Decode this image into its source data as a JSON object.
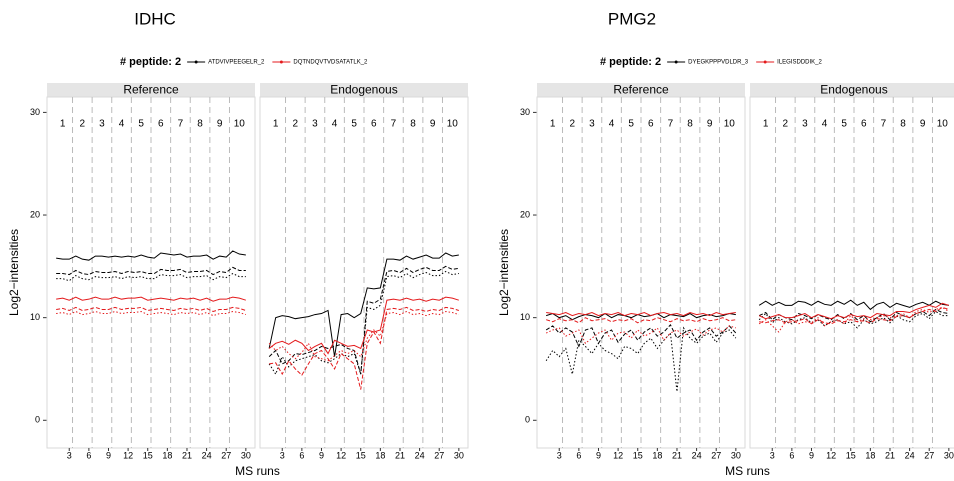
{
  "chart_data": [
    {
      "type": "line",
      "title": "IDHC",
      "legend_title": "# peptide: 2",
      "xlabel": "MS runs",
      "ylabel": "Log2−intensities",
      "panel_titles": [
        "Reference",
        "Endogenous"
      ],
      "groups": [
        1,
        2,
        3,
        4,
        5,
        6,
        7,
        8,
        9,
        10
      ],
      "x": [
        1,
        2,
        3,
        4,
        5,
        6,
        7,
        8,
        9,
        10,
        11,
        12,
        13,
        14,
        15,
        16,
        17,
        18,
        19,
        20,
        21,
        22,
        23,
        24,
        25,
        26,
        27,
        28,
        29,
        30
      ],
      "xlim": [
        -0.4,
        31.4
      ],
      "xticks": [
        3,
        6,
        9,
        12,
        15,
        18,
        21,
        24,
        27,
        30
      ],
      "ylim": [
        -2.7,
        31.5
      ],
      "yticks": [
        0,
        10,
        20,
        30
      ],
      "series": [
        {
          "name": "ATDVIVPEEGELR_2",
          "color": "#000000",
          "values": [
            [
              [
                15.8,
                15.7,
                15.7,
                16.0,
                15.7,
                15.6,
                16.0,
                16.0,
                15.9,
                16.0,
                15.9,
                16.0,
                15.9,
                16.1,
                15.9,
                15.8,
                16.3,
                16.2,
                16.1,
                16.2,
                15.9,
                16.0,
                16.0,
                16.1,
                15.7,
                16.0,
                15.9,
                16.5,
                16.2,
                16.1
              ],
              [
                14.3,
                14.3,
                14.2,
                14.6,
                14.3,
                14.2,
                14.5,
                14.4,
                14.4,
                14.5,
                14.3,
                14.5,
                14.4,
                14.5,
                14.3,
                14.3,
                14.7,
                14.6,
                14.6,
                14.7,
                14.4,
                14.5,
                14.5,
                14.6,
                14.2,
                14.5,
                14.4,
                14.9,
                14.6,
                14.6
              ],
              [
                13.8,
                13.8,
                13.6,
                14.1,
                13.8,
                13.7,
                14.0,
                13.9,
                13.9,
                14.0,
                13.8,
                14.0,
                13.9,
                14.0,
                13.8,
                13.8,
                14.2,
                14.1,
                14.1,
                14.2,
                13.9,
                14.0,
                14.0,
                14.1,
                13.7,
                14.0,
                13.9,
                14.3,
                14.0,
                14.0
              ]
            ],
            [
              [
                7.0,
                10.0,
                10.2,
                10.1,
                9.9,
                10.0,
                10.1,
                10.3,
                10.4,
                10.7,
                6.2,
                10.3,
                10.4,
                10.0,
                10.4,
                12.9,
                12.8,
                12.9,
                15.7,
                15.7,
                15.6,
                16.0,
                15.7,
                15.9,
                16.1,
                15.8,
                15.8,
                16.3,
                16.0,
                16.1
              ],
              [
                6.2,
                6.8,
                5.5,
                5.8,
                6.5,
                6.4,
                6.6,
                6.8,
                7.2,
                7.0,
                7.2,
                7.4,
                7.0,
                6.8,
                4.5,
                11.6,
                11.4,
                11.8,
                14.5,
                14.6,
                14.4,
                14.8,
                14.4,
                14.7,
                14.9,
                14.6,
                14.6,
                15.0,
                14.7,
                14.8
              ],
              [
                5.5,
                4.5,
                6.2,
                5.2,
                5.8,
                6.0,
                6.2,
                6.4,
                5.8,
                5.6,
                6.0,
                6.5,
                6.2,
                6.5,
                4.5,
                11.0,
                10.8,
                11.2,
                14.0,
                14.1,
                13.9,
                14.3,
                13.9,
                14.2,
                14.4,
                14.1,
                14.1,
                14.5,
                14.2,
                14.3
              ]
            ]
          ]
        },
        {
          "name": "DQTNDQVTVDSATATLK_2",
          "color": "#e41a1c",
          "values": [
            [
              [
                11.8,
                11.9,
                11.7,
                12.0,
                11.7,
                11.8,
                12.0,
                11.8,
                11.8,
                12.0,
                11.8,
                11.9,
                11.9,
                12.0,
                11.7,
                11.8,
                11.9,
                11.8,
                11.7,
                11.9,
                11.8,
                11.9,
                11.7,
                11.9,
                11.6,
                11.8,
                11.8,
                12.0,
                11.9,
                11.7
              ],
              [
                10.8,
                10.9,
                10.7,
                11.0,
                10.7,
                10.8,
                11.0,
                10.8,
                10.8,
                11.0,
                10.8,
                10.9,
                10.9,
                11.0,
                10.7,
                10.8,
                10.9,
                10.8,
                10.7,
                10.9,
                10.8,
                10.9,
                10.7,
                10.9,
                10.6,
                10.8,
                10.8,
                11.0,
                10.9,
                10.7
              ],
              [
                10.4,
                10.5,
                10.3,
                10.6,
                10.3,
                10.4,
                10.6,
                10.4,
                10.4,
                10.6,
                10.4,
                10.5,
                10.5,
                10.6,
                10.3,
                10.4,
                10.5,
                10.4,
                10.3,
                10.5,
                10.4,
                10.5,
                10.3,
                10.5,
                10.2,
                10.4,
                10.4,
                10.6,
                10.5,
                10.3
              ]
            ],
            [
              [
                7.0,
                7.5,
                7.7,
                7.4,
                7.8,
                7.5,
                6.8,
                7.2,
                7.5,
                6.5,
                7.8,
                7.5,
                7.2,
                7.3,
                7.0,
                8.8,
                8.6,
                8.8,
                11.7,
                11.8,
                11.7,
                11.9,
                11.7,
                11.8,
                11.6,
                11.8,
                11.7,
                12.0,
                11.9,
                11.7
              ],
              [
                5.5,
                5.6,
                4.5,
                5.8,
                5.0,
                4.4,
                5.5,
                6.5,
                6.8,
                6.0,
                5.0,
                6.5,
                6.0,
                5.5,
                3.0,
                7.5,
                8.6,
                7.5,
                10.8,
                10.9,
                10.8,
                11.0,
                10.7,
                10.8,
                10.6,
                10.8,
                10.7,
                11.0,
                10.9,
                10.7
              ],
              [
                7.5,
                6.8,
                7.2,
                6.5,
                6.0,
                6.6,
                7.5,
                6.2,
                6.0,
                5.8,
                6.3,
                6.8,
                6.5,
                6.8,
                6.2,
                8.0,
                8.8,
                8.2,
                10.4,
                10.5,
                10.3,
                10.6,
                10.3,
                10.4,
                10.2,
                10.4,
                10.3,
                10.6,
                10.5,
                10.3
              ]
            ]
          ]
        }
      ]
    },
    {
      "type": "line",
      "title": "PMG2",
      "legend_title": "# peptide: 2",
      "xlabel": "MS runs",
      "ylabel": "Log2−intensities",
      "panel_titles": [
        "Reference",
        "Endogenous"
      ],
      "groups": [
        1,
        2,
        3,
        4,
        5,
        6,
        7,
        8,
        9,
        10
      ],
      "x": [
        1,
        2,
        3,
        4,
        5,
        6,
        7,
        8,
        9,
        10,
        11,
        12,
        13,
        14,
        15,
        16,
        17,
        18,
        19,
        20,
        21,
        22,
        23,
        24,
        25,
        26,
        27,
        28,
        29,
        30
      ],
      "xlim": [
        -0.4,
        31.4
      ],
      "xticks": [
        3,
        6,
        9,
        12,
        15,
        18,
        21,
        24,
        27,
        30
      ],
      "ylim": [
        -2.7,
        31.5
      ],
      "yticks": [
        0,
        10,
        20,
        30
      ],
      "series": [
        {
          "name": "DYEGKPPPVDLDR_3",
          "color": "#000000",
          "values": [
            [
              [
                10.2,
                10.4,
                10.0,
                10.2,
                9.8,
                10.1,
                10.3,
                10.2,
                10.0,
                10.4,
                10.0,
                10.3,
                10.2,
                10.0,
                10.3,
                10.1,
                10.2,
                10.4,
                10.0,
                10.3,
                10.2,
                10.1,
                10.4,
                10.0,
                10.2,
                10.3,
                10.1,
                10.2,
                10.4,
                10.3
              ],
              [
                8.8,
                9.2,
                8.5,
                9.0,
                8.6,
                7.2,
                8.8,
                9.0,
                7.5,
                8.5,
                8.8,
                7.6,
                8.4,
                8.8,
                7.8,
                8.6,
                9.0,
                8.2,
                8.6,
                9.3,
                8.0,
                8.5,
                8.8,
                7.8,
                8.6,
                9.0,
                8.2,
                8.6,
                9.2,
                8.5
              ],
              [
                5.8,
                6.8,
                6.2,
                7.0,
                4.5,
                7.8,
                7.2,
                6.5,
                7.5,
                6.8,
                6.5,
                6.0,
                7.2,
                7.0,
                6.5,
                7.5,
                8.0,
                7.0,
                7.8,
                8.5,
                2.8,
                9.0,
                8.0,
                7.5,
                8.2,
                8.5,
                7.6,
                8.5,
                8.8,
                8.0
              ]
            ],
            [
              [
                11.2,
                11.6,
                11.2,
                11.5,
                11.2,
                11.2,
                11.6,
                11.5,
                11.2,
                11.6,
                11.3,
                11.2,
                11.6,
                11.3,
                11.7,
                11.2,
                11.5,
                10.8,
                11.3,
                11.5,
                11.0,
                11.4,
                11.2,
                11.0,
                11.3,
                11.5,
                11.2,
                11.6,
                11.3,
                11.2
              ],
              [
                10.2,
                10.5,
                9.8,
                10.3,
                10.0,
                9.8,
                10.4,
                10.2,
                9.9,
                10.3,
                10.0,
                9.8,
                10.3,
                9.9,
                10.4,
                9.8,
                10.2,
                9.6,
                10.0,
                10.4,
                9.8,
                10.5,
                10.2,
                10.0,
                10.4,
                10.6,
                10.2,
                10.8,
                10.5,
                10.4
              ],
              [
                9.8,
                10.4,
                9.5,
                10.0,
                9.6,
                9.4,
                9.8,
                10.0,
                9.5,
                9.8,
                9.2,
                9.6,
                9.8,
                9.4,
                9.6,
                9.0,
                9.8,
                9.4,
                9.6,
                10.0,
                9.5,
                10.2,
                9.8,
                9.6,
                10.2,
                10.4,
                9.9,
                10.6,
                10.2,
                10.2
              ]
            ]
          ]
        },
        {
          "name": "ILEGISDDDIK_2",
          "color": "#e41a1c",
          "values": [
            [
              [
                10.5,
                10.4,
                10.3,
                10.5,
                10.2,
                10.4,
                10.3,
                10.5,
                10.2,
                10.4,
                10.3,
                10.5,
                10.2,
                10.4,
                10.3,
                10.5,
                10.2,
                10.4,
                10.5,
                10.3,
                10.4,
                10.2,
                10.5,
                10.3,
                10.4,
                10.2,
                10.5,
                10.3,
                10.4,
                10.5
              ],
              [
                9.8,
                9.6,
                9.9,
                9.7,
                9.8,
                9.5,
                10.0,
                9.7,
                9.8,
                9.9,
                9.6,
                9.8,
                9.7,
                9.9,
                9.5,
                9.8,
                9.7,
                10.0,
                9.8,
                9.6,
                9.9,
                9.7,
                9.8,
                9.6,
                9.9,
                9.7,
                9.8,
                10.0,
                9.7,
                9.8
              ],
              [
                8.5,
                8.8,
                9.0,
                8.2,
                8.5,
                8.8,
                7.5,
                8.0,
                8.5,
                8.8,
                7.8,
                8.5,
                8.6,
                8.0,
                8.8,
                8.2,
                8.5,
                9.0,
                7.8,
                8.5,
                8.8,
                8.2,
                8.6,
                8.9,
                8.3,
                8.8,
                9.0,
                8.6,
                9.2,
                9.0
              ]
            ],
            [
              [
                10.2,
                9.9,
                10.1,
                10.3,
                10.0,
                10.0,
                10.2,
                10.4,
                10.0,
                10.3,
                10.1,
                9.9,
                10.2,
                10.0,
                10.3,
                10.1,
                10.2,
                10.0,
                10.4,
                10.3,
                10.2,
                10.6,
                10.6,
                10.5,
                10.8,
                11.0,
                11.2,
                11.0,
                11.4,
                11.2
              ],
              [
                9.6,
                9.5,
                9.7,
                9.8,
                9.5,
                9.6,
                9.7,
                9.9,
                9.4,
                9.8,
                9.5,
                9.4,
                9.7,
                9.6,
                9.8,
                9.6,
                9.7,
                9.5,
                9.9,
                9.8,
                9.7,
                10.1,
                10.2,
                10.0,
                10.4,
                10.6,
                10.8,
                10.6,
                11.0,
                10.8
              ],
              [
                9.4,
                9.8,
                9.2,
                8.6,
                9.6,
                9.8,
                9.4,
                9.6,
                9.5,
                10.0,
                9.2,
                9.6,
                9.8,
                9.4,
                10.2,
                9.6,
                9.9,
                9.8,
                10.0,
                10.2,
                10.0,
                10.2,
                10.4,
                10.0,
                10.6,
                10.8,
                10.5,
                10.8,
                11.0,
                10.6
              ]
            ]
          ]
        }
      ]
    }
  ]
}
